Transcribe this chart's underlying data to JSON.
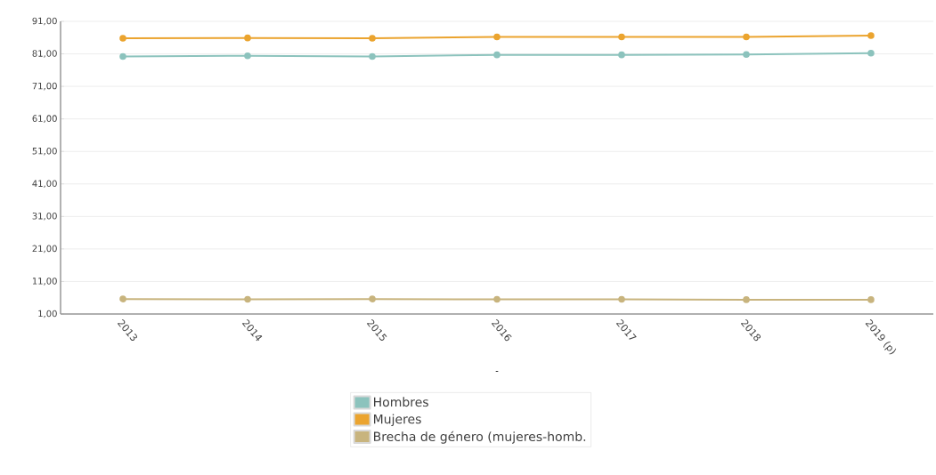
{
  "chart_data": {
    "type": "line",
    "xlabel": "-",
    "categories": [
      "2013",
      "2014",
      "2015",
      "2016",
      "2017",
      "2018",
      "2019 (p)"
    ],
    "series": [
      {
        "name": "Hombres",
        "color": "#8cc3bd",
        "values": [
          80.2,
          80.4,
          80.2,
          80.7,
          80.7,
          80.8,
          81.2
        ]
      },
      {
        "name": "Mujeres",
        "color": "#eba42f",
        "values": [
          85.8,
          85.9,
          85.8,
          86.2,
          86.2,
          86.2,
          86.6
        ]
      },
      {
        "name": "Brecha de género (mujeres-homb.",
        "color": "#c8b47e",
        "values": [
          5.6,
          5.5,
          5.6,
          5.5,
          5.5,
          5.4,
          5.4
        ]
      }
    ],
    "ylim": [
      1,
      91
    ],
    "yticks": [
      {
        "value": 1,
        "label": "1,00"
      },
      {
        "value": 11,
        "label": "11,00"
      },
      {
        "value": 21,
        "label": "21,00"
      },
      {
        "value": 31,
        "label": "31,00"
      },
      {
        "value": 41,
        "label": "41,00"
      },
      {
        "value": 51,
        "label": "51,00"
      },
      {
        "value": 61,
        "label": "61,00"
      },
      {
        "value": 71,
        "label": "71,00"
      },
      {
        "value": 81,
        "label": "81,00"
      },
      {
        "value": 91,
        "label": "91,00"
      }
    ],
    "grid": "y",
    "legend": "bottom",
    "marker": "circle"
  }
}
